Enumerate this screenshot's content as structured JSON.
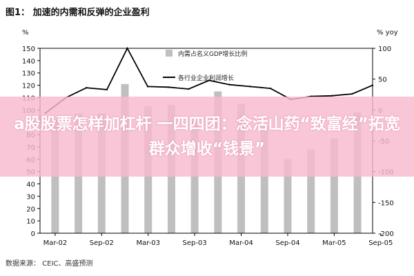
{
  "chart_data": {
    "type": "bar",
    "title": "图1： 加速的内需和反弹的企业盈利",
    "left_unit": "%",
    "right_unit": "% yoy",
    "source": "数据来源： CEIC、高盛预测",
    "x_tick_labels": [
      "Mar-02",
      "Sep-02",
      "Mar-03",
      "Sep-03",
      "Mar-04",
      "Sep-04",
      "Mar-05",
      "Sep-05"
    ],
    "y_left": {
      "min": 0,
      "max": 150,
      "ticks": [
        0,
        10,
        20,
        30,
        40,
        50,
        60,
        70,
        80,
        90,
        100,
        110,
        120,
        130,
        140,
        150
      ]
    },
    "y_right": {
      "min": -200,
      "max": 100,
      "ticks": [
        -200,
        -150,
        -100,
        -50,
        0,
        50,
        100
      ]
    },
    "series": [
      {
        "name": "内需占名义GDP增长比例",
        "type": "bar",
        "axis": "left",
        "color": "#bfbfbf",
        "values": [
          92,
          97,
          97,
          121,
          103,
          104,
          91,
          115,
          105,
          86,
          60,
          68,
          77,
          98
        ]
      },
      {
        "name": "各行业企业利润增长",
        "type": "line",
        "axis": "right",
        "color": "#000000",
        "values": [
          -5,
          20,
          36,
          33,
          100,
          38,
          37,
          34,
          48,
          41,
          38,
          35,
          17,
          22,
          23,
          26,
          40
        ]
      }
    ]
  },
  "overlay": {
    "text": "a股股票怎样加杠杆 一四四团：念活山药“致富经”拓宽群众增收“钱景”"
  }
}
